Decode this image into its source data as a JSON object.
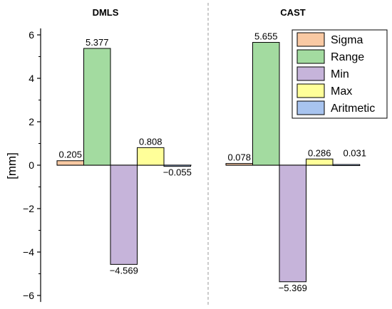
{
  "chart_data": {
    "type": "bar",
    "ylabel": "[mm]",
    "ylim": [
      -6.3,
      6.3
    ],
    "yticks": [
      -6,
      -4,
      -2,
      0,
      2,
      4,
      6
    ],
    "ytick_labels": [
      "−6",
      "−4",
      "−2",
      "0",
      "2",
      "4",
      "6"
    ],
    "grid": false,
    "legend_position": "top-right",
    "series": [
      {
        "name": "Sigma",
        "color": "#f9c9a3"
      },
      {
        "name": "Range",
        "color": "#a3dba0"
      },
      {
        "name": "Min",
        "color": "#c6b4da"
      },
      {
        "name": "Max",
        "color": "#ffff99"
      },
      {
        "name": "Aritmetic",
        "color": "#a8c4ef"
      }
    ],
    "panels": [
      {
        "title": "DMLS",
        "values": [
          0.205,
          5.377,
          -4.569,
          0.808,
          -0.055
        ],
        "labels": [
          "0.205",
          "5.377",
          "−4.569",
          "0.808",
          "−0.055"
        ]
      },
      {
        "title": "CAST",
        "values": [
          0.078,
          5.655,
          -5.369,
          0.286,
          0.031
        ],
        "labels": [
          "0.078",
          "5.655",
          "−5.369",
          "0.286",
          "0.031"
        ]
      }
    ]
  }
}
